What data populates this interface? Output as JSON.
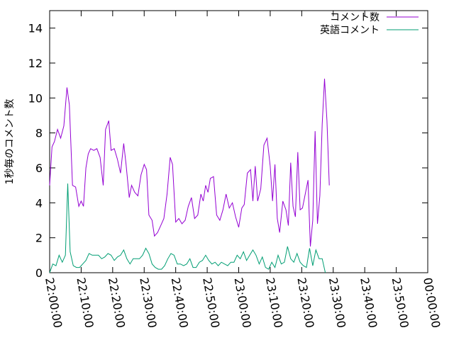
{
  "chart_data": {
    "type": "line",
    "ylabel": "1秒毎のコメント数",
    "xlabel": "",
    "ylim": [
      0,
      15
    ],
    "yticks": [
      0,
      2,
      4,
      6,
      8,
      10,
      12,
      14
    ],
    "xlim": [
      "22:00:00",
      "00:00:00"
    ],
    "xticks": [
      "22:00:00",
      "22:10:00",
      "22:20:00",
      "22:30:00",
      "22:40:00",
      "22:50:00",
      "23:00:00",
      "23:10:00",
      "23:20:00",
      "23:30:00",
      "23:40:00",
      "23:50:00",
      "00:00:00"
    ],
    "grid": false,
    "legend_position": "top-right",
    "series": [
      {
        "name": "コメント数",
        "color": "#9400d3",
        "points": [
          [
            "22:00:00",
            5.0
          ],
          [
            "22:00:45",
            7.2
          ],
          [
            "22:01:30",
            7.5
          ],
          [
            "22:02:30",
            8.2
          ],
          [
            "22:03:30",
            7.7
          ],
          [
            "22:04:30",
            8.4
          ],
          [
            "22:05:30",
            10.6
          ],
          [
            "22:06:15",
            9.6
          ],
          [
            "22:07:15",
            5.0
          ],
          [
            "22:08:15",
            4.9
          ],
          [
            "22:09:15",
            3.8
          ],
          [
            "22:10:00",
            4.1
          ],
          [
            "22:10:45",
            3.8
          ],
          [
            "22:11:30",
            6.0
          ],
          [
            "22:12:15",
            6.8
          ],
          [
            "22:13:00",
            7.1
          ],
          [
            "22:14:00",
            7.0
          ],
          [
            "22:15:00",
            7.1
          ],
          [
            "22:16:00",
            6.6
          ],
          [
            "22:17:00",
            5.0
          ],
          [
            "22:17:45",
            8.2
          ],
          [
            "22:18:45",
            8.7
          ],
          [
            "22:19:30",
            7.0
          ],
          [
            "22:20:30",
            7.1
          ],
          [
            "22:21:30",
            6.5
          ],
          [
            "22:22:30",
            5.7
          ],
          [
            "22:23:30",
            7.4
          ],
          [
            "22:24:15",
            6.2
          ],
          [
            "22:25:15",
            4.3
          ],
          [
            "22:26:00",
            5.0
          ],
          [
            "22:27:00",
            4.6
          ],
          [
            "22:28:00",
            4.4
          ],
          [
            "22:29:00",
            5.6
          ],
          [
            "22:30:00",
            6.2
          ],
          [
            "22:30:45",
            5.9
          ],
          [
            "22:31:30",
            3.3
          ],
          [
            "22:32:30",
            3.0
          ],
          [
            "22:33:15",
            2.1
          ],
          [
            "22:34:15",
            2.3
          ],
          [
            "22:35:15",
            2.7
          ],
          [
            "22:36:15",
            3.1
          ],
          [
            "22:37:15",
            4.5
          ],
          [
            "22:38:15",
            6.6
          ],
          [
            "22:39:00",
            6.2
          ],
          [
            "22:40:00",
            2.9
          ],
          [
            "22:41:00",
            3.1
          ],
          [
            "22:42:00",
            2.8
          ],
          [
            "22:43:00",
            3.0
          ],
          [
            "22:44:00",
            3.8
          ],
          [
            "22:45:00",
            4.3
          ],
          [
            "22:46:00",
            3.1
          ],
          [
            "22:47:00",
            3.3
          ],
          [
            "22:48:00",
            4.5
          ],
          [
            "22:48:45",
            4.1
          ],
          [
            "22:49:30",
            5.0
          ],
          [
            "22:50:15",
            4.6
          ],
          [
            "22:51:00",
            5.4
          ],
          [
            "22:52:00",
            5.5
          ],
          [
            "22:53:00",
            3.3
          ],
          [
            "22:54:00",
            3.0
          ],
          [
            "22:55:00",
            3.6
          ],
          [
            "22:56:00",
            4.5
          ],
          [
            "22:57:00",
            3.7
          ],
          [
            "22:58:00",
            4.0
          ],
          [
            "22:59:00",
            3.2
          ],
          [
            "23:00:00",
            2.6
          ],
          [
            "23:01:00",
            3.7
          ],
          [
            "23:01:45",
            3.9
          ],
          [
            "23:02:45",
            5.7
          ],
          [
            "23:03:45",
            5.9
          ],
          [
            "23:04:30",
            4.1
          ],
          [
            "23:05:15",
            6.1
          ],
          [
            "23:06:00",
            4.1
          ],
          [
            "23:07:00",
            4.8
          ],
          [
            "23:08:00",
            7.3
          ],
          [
            "23:09:00",
            7.7
          ],
          [
            "23:10:00",
            6.1
          ],
          [
            "23:10:45",
            4.1
          ],
          [
            "23:11:30",
            6.2
          ],
          [
            "23:12:15",
            3.1
          ],
          [
            "23:13:00",
            2.3
          ],
          [
            "23:14:00",
            4.1
          ],
          [
            "23:15:00",
            3.6
          ],
          [
            "23:15:45",
            2.7
          ],
          [
            "23:16:30",
            6.3
          ],
          [
            "23:17:15",
            3.8
          ],
          [
            "23:18:00",
            3.2
          ],
          [
            "23:18:45",
            6.9
          ],
          [
            "23:19:30",
            3.6
          ],
          [
            "23:20:15",
            3.7
          ],
          [
            "23:21:00",
            4.4
          ],
          [
            "23:22:00",
            5.3
          ],
          [
            "23:22:45",
            1.5
          ],
          [
            "23:23:30",
            3.0
          ],
          [
            "23:24:15",
            8.1
          ],
          [
            "23:25:00",
            2.8
          ],
          [
            "23:25:45",
            4.4
          ],
          [
            "23:26:30",
            8.5
          ],
          [
            "23:27:15",
            11.1
          ],
          [
            "23:28:00",
            8.7
          ],
          [
            "23:28:45",
            5.0
          ]
        ]
      },
      {
        "name": "英語コメント",
        "color": "#009e73",
        "points": [
          [
            "22:00:00",
            0.0
          ],
          [
            "22:01:00",
            0.5
          ],
          [
            "22:02:00",
            0.4
          ],
          [
            "22:03:00",
            1.0
          ],
          [
            "22:04:00",
            0.6
          ],
          [
            "22:05:00",
            1.0
          ],
          [
            "22:05:45",
            5.1
          ],
          [
            "22:06:30",
            1.2
          ],
          [
            "22:07:30",
            0.4
          ],
          [
            "22:08:30",
            0.3
          ],
          [
            "22:09:30",
            0.3
          ],
          [
            "22:10:30",
            0.5
          ],
          [
            "22:11:30",
            0.7
          ],
          [
            "22:12:30",
            1.1
          ],
          [
            "22:13:30",
            1.0
          ],
          [
            "22:14:30",
            1.0
          ],
          [
            "22:15:30",
            1.0
          ],
          [
            "22:16:30",
            0.8
          ],
          [
            "22:17:30",
            0.9
          ],
          [
            "22:18:30",
            1.1
          ],
          [
            "22:19:30",
            1.0
          ],
          [
            "22:20:30",
            0.7
          ],
          [
            "22:21:30",
            0.9
          ],
          [
            "22:22:30",
            1.0
          ],
          [
            "22:23:30",
            1.3
          ],
          [
            "22:24:30",
            0.8
          ],
          [
            "22:25:30",
            0.5
          ],
          [
            "22:26:30",
            0.8
          ],
          [
            "22:27:30",
            0.8
          ],
          [
            "22:28:30",
            0.8
          ],
          [
            "22:29:30",
            1.0
          ],
          [
            "22:30:30",
            1.4
          ],
          [
            "22:31:30",
            1.1
          ],
          [
            "22:32:30",
            0.5
          ],
          [
            "22:33:30",
            0.3
          ],
          [
            "22:34:30",
            0.2
          ],
          [
            "22:35:30",
            0.2
          ],
          [
            "22:36:30",
            0.4
          ],
          [
            "22:37:30",
            0.8
          ],
          [
            "22:38:30",
            1.1
          ],
          [
            "22:39:30",
            1.0
          ],
          [
            "22:40:30",
            0.5
          ],
          [
            "22:41:30",
            0.5
          ],
          [
            "22:42:30",
            0.4
          ],
          [
            "22:43:30",
            0.5
          ],
          [
            "22:44:30",
            0.8
          ],
          [
            "22:45:30",
            0.3
          ],
          [
            "22:46:30",
            0.3
          ],
          [
            "22:47:30",
            0.6
          ],
          [
            "22:48:30",
            0.7
          ],
          [
            "22:49:30",
            1.0
          ],
          [
            "22:50:30",
            0.7
          ],
          [
            "22:51:30",
            0.5
          ],
          [
            "22:52:30",
            0.6
          ],
          [
            "22:53:30",
            0.4
          ],
          [
            "22:54:30",
            0.6
          ],
          [
            "22:55:30",
            0.5
          ],
          [
            "22:56:30",
            0.4
          ],
          [
            "22:57:30",
            0.6
          ],
          [
            "22:58:30",
            0.6
          ],
          [
            "22:59:30",
            1.0
          ],
          [
            "23:00:30",
            0.8
          ],
          [
            "23:01:30",
            1.2
          ],
          [
            "23:02:30",
            0.7
          ],
          [
            "23:03:30",
            1.0
          ],
          [
            "23:04:30",
            1.3
          ],
          [
            "23:05:30",
            1.0
          ],
          [
            "23:06:30",
            0.5
          ],
          [
            "23:07:30",
            0.9
          ],
          [
            "23:08:30",
            0.3
          ],
          [
            "23:09:30",
            0.2
          ],
          [
            "23:10:30",
            0.6
          ],
          [
            "23:11:30",
            0.3
          ],
          [
            "23:12:30",
            1.0
          ],
          [
            "23:13:30",
            0.5
          ],
          [
            "23:14:30",
            0.6
          ],
          [
            "23:15:30",
            1.5
          ],
          [
            "23:16:30",
            0.8
          ],
          [
            "23:17:30",
            0.6
          ],
          [
            "23:18:30",
            1.1
          ],
          [
            "23:19:30",
            0.6
          ],
          [
            "23:20:30",
            0.4
          ],
          [
            "23:21:30",
            0.3
          ],
          [
            "23:22:30",
            1.4
          ],
          [
            "23:23:30",
            0.4
          ],
          [
            "23:24:30",
            1.3
          ],
          [
            "23:25:30",
            0.8
          ],
          [
            "23:26:30",
            0.8
          ],
          [
            "23:27:30",
            0.0
          ]
        ]
      }
    ]
  }
}
